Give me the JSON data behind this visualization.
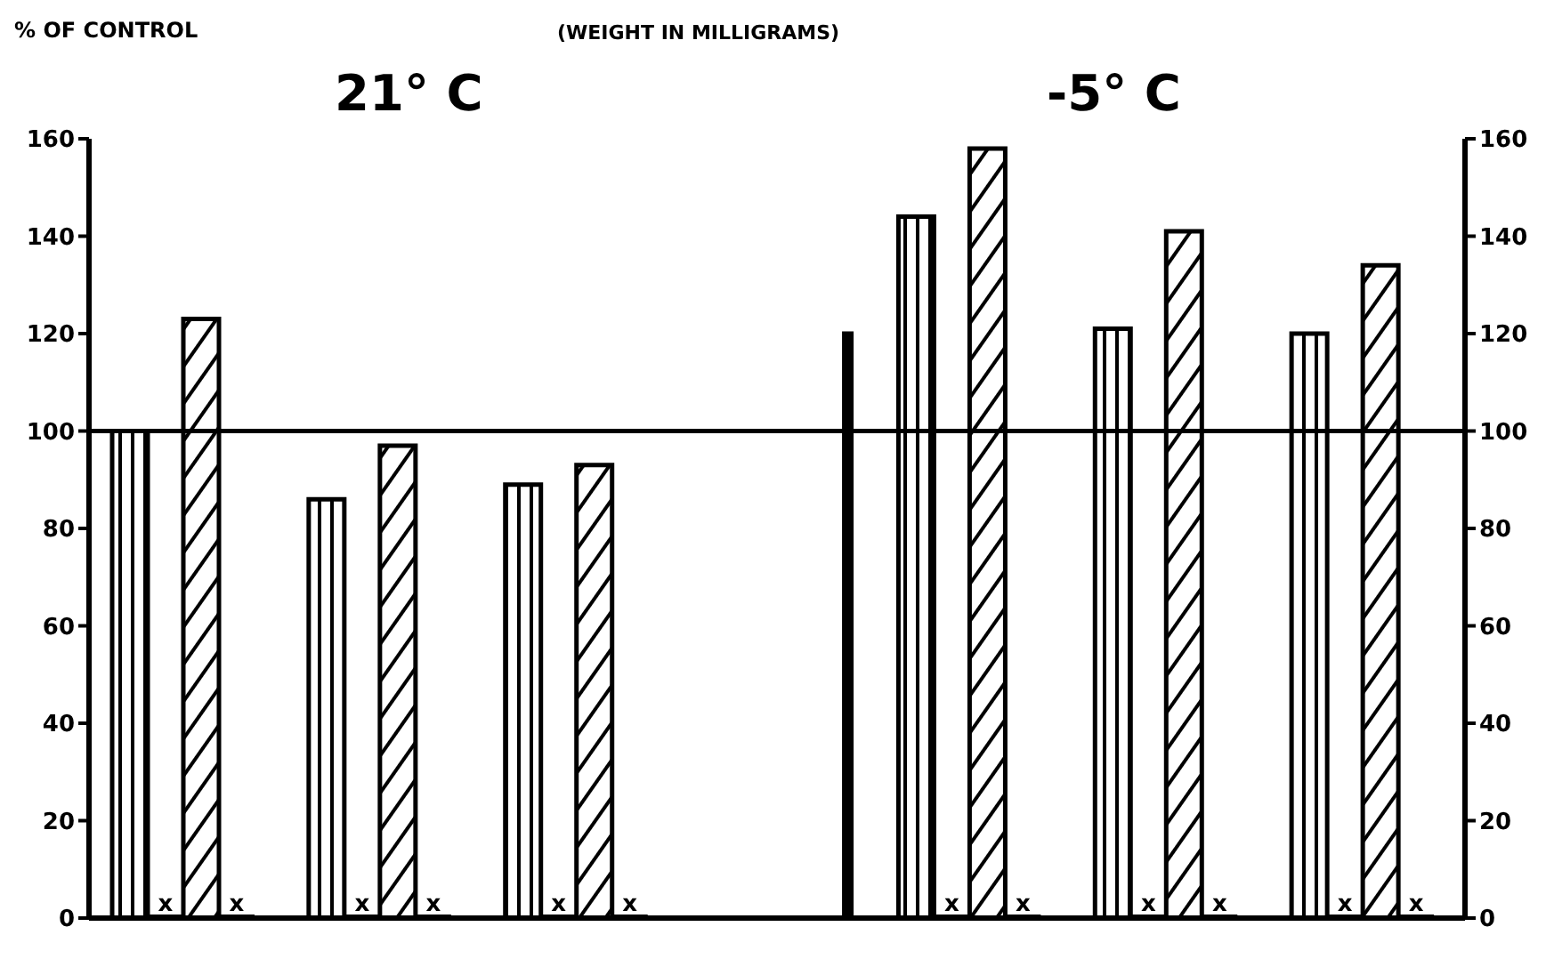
{
  "chart_data": {
    "type": "bar",
    "title": "(WEIGHT IN MILLIGRAMS)",
    "ylabel": "% OF CONTROL",
    "annotations": [
      "21° C",
      "-5° C"
    ],
    "categories": [
      null,
      null,
      null,
      null,
      null,
      null,
      null
    ],
    "series": [
      {
        "color": "#000000",
        "values": [
          100,
          86,
          89,
          null,
          144,
          121,
          120
        ]
      },
      {
        "color": "#000000",
        "values": [
          0,
          0,
          0,
          null,
          0,
          0,
          0
        ],
        "value_labels": [
          "x",
          "x",
          "x",
          null,
          "x",
          "x",
          "x"
        ]
      },
      {
        "color": "#000000",
        "values": [
          123,
          97,
          93,
          null,
          158,
          141,
          134
        ]
      },
      {
        "color": "#000000",
        "values": [
          0,
          0,
          0,
          null,
          0,
          0,
          0
        ],
        "value_labels": [
          "x",
          "x",
          "x",
          null,
          "x",
          "x",
          "x"
        ]
      },
      {
        "color": "#000000",
        "values": [
          null,
          null,
          null,
          120,
          null,
          null,
          null
        ],
        "axis": "y2"
      }
    ],
    "ylim": [
      0,
      160
    ],
    "yticks": [
      0,
      20,
      40,
      60,
      80,
      100,
      120,
      140,
      160
    ],
    "y2lim": [
      0,
      160
    ],
    "y2ticks": [
      0,
      20,
      40,
      60,
      80,
      100,
      120,
      140,
      160
    ],
    "ref_lines": [
      {
        "axis": "y",
        "value": 100,
        "color": "#000000",
        "line_style": "solid"
      }
    ],
    "grid": false,
    "legend": false
  }
}
